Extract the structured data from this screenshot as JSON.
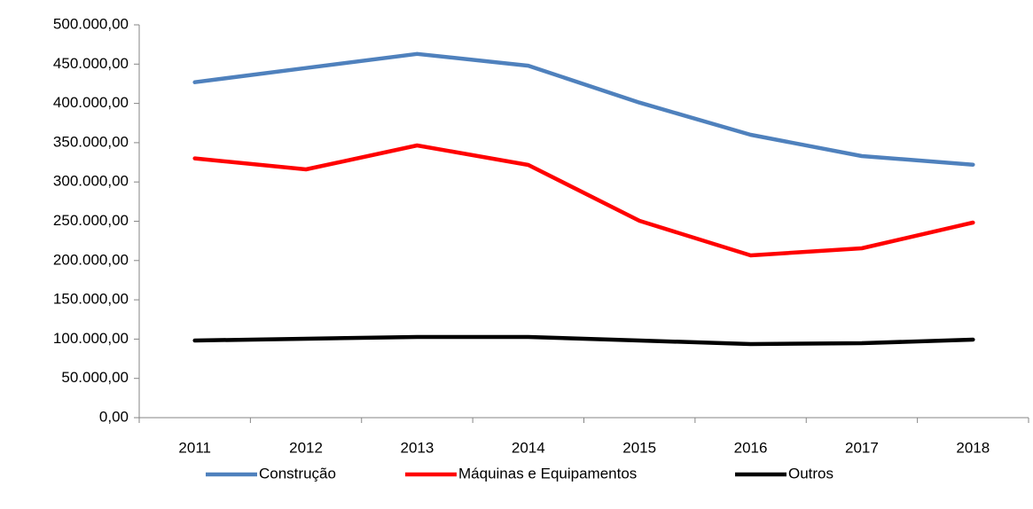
{
  "chart_data": {
    "type": "line",
    "categories": [
      "2011",
      "2012",
      "2013",
      "2014",
      "2015",
      "2016",
      "2017",
      "2018"
    ],
    "series": [
      {
        "name": "Construção",
        "color": "#4f81bd",
        "values": [
          427000,
          445000,
          463000,
          448000,
          401000,
          360000,
          333000,
          322000
        ]
      },
      {
        "name": "Máquinas e Equipamentos",
        "color": "#ff0000",
        "values": [
          330000,
          316000,
          346500,
          321700,
          250600,
          206500,
          215600,
          248300
        ]
      },
      {
        "name": "Outros",
        "color": "#000000",
        "values": [
          98200,
          100400,
          102700,
          102700,
          98200,
          93700,
          94800,
          99300
        ]
      }
    ],
    "ylim": [
      0,
      500000
    ],
    "yticks": [
      {
        "value": 0,
        "label": "0,00"
      },
      {
        "value": 50000,
        "label": "50.000,00"
      },
      {
        "value": 100000,
        "label": "100.000,00"
      },
      {
        "value": 150000,
        "label": "150.000,00"
      },
      {
        "value": 200000,
        "label": "200.000,00"
      },
      {
        "value": 250000,
        "label": "250.000,00"
      },
      {
        "value": 300000,
        "label": "300.000,00"
      },
      {
        "value": 350000,
        "label": "350.000,00"
      },
      {
        "value": 400000,
        "label": "400.000,00"
      },
      {
        "value": 450000,
        "label": "450.000,00"
      },
      {
        "value": 500000,
        "label": "500.000,00"
      }
    ],
    "legend": "bottom"
  }
}
